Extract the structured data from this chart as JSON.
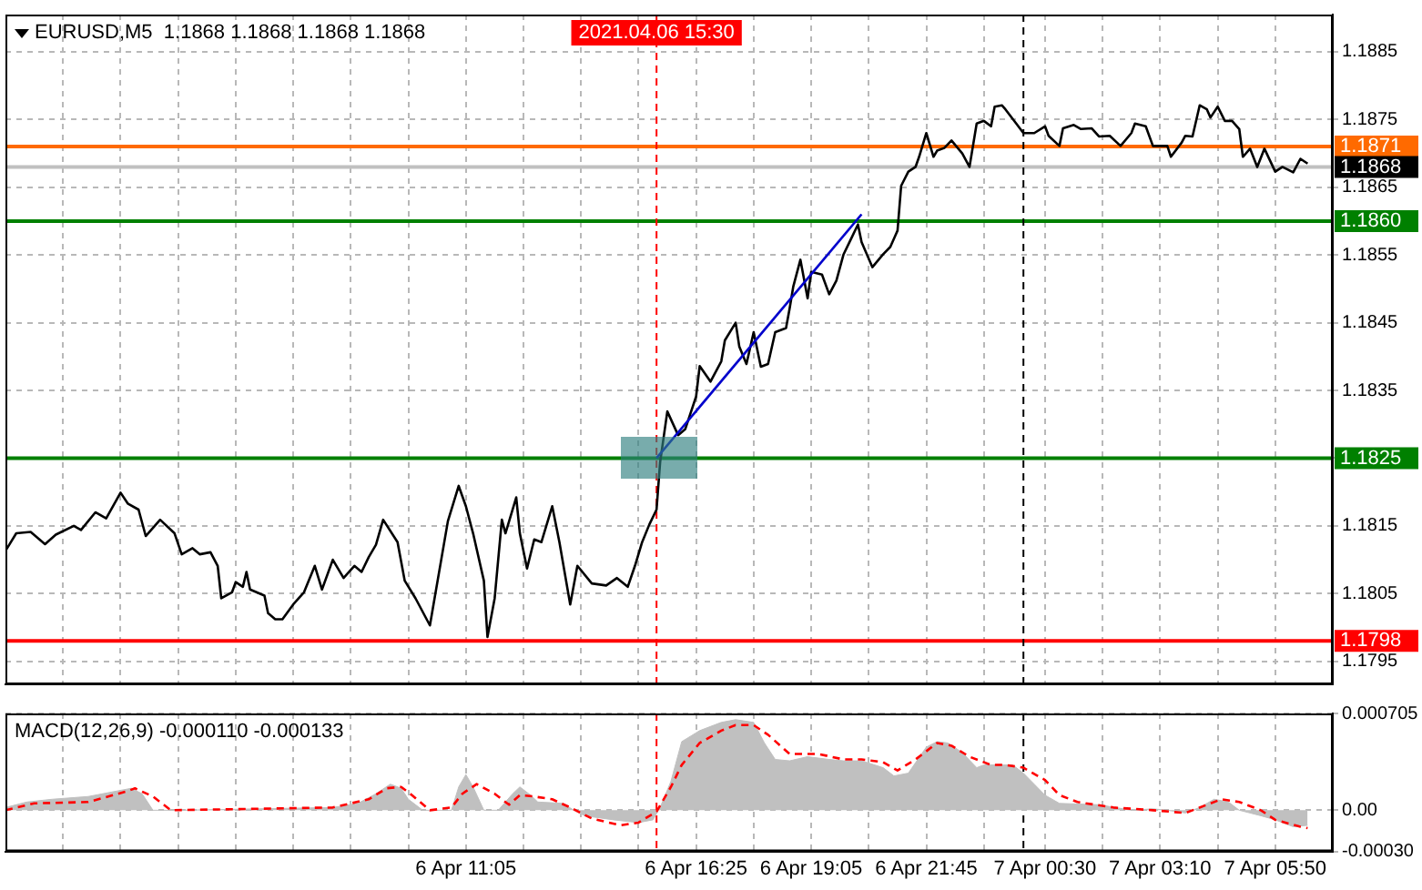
{
  "chart_data": [
    {
      "type": "line",
      "title": "EURUSD,M5  1.1868 1.1868 1.1868 1.1868",
      "xlim": [
        "2021-04-06T00:25",
        "2021-04-07T07:10"
      ],
      "ylim": [
        1.17916,
        1.18905
      ],
      "tick_labels": "y",
      "grid": true,
      "xticks": [
        {
          "value": "2021-04-06T01:45",
          "label": null
        },
        {
          "value": "2021-04-06T03:05",
          "label": null
        },
        {
          "value": "2021-04-06T04:25",
          "label": null
        },
        {
          "value": "2021-04-06T05:45",
          "label": null
        },
        {
          "value": "2021-04-06T07:05",
          "label": null
        },
        {
          "value": "2021-04-06T08:25",
          "label": null
        },
        {
          "value": "2021-04-06T09:45",
          "label": null
        },
        {
          "value": "2021-04-06T11:05",
          "label": null
        },
        {
          "value": "2021-04-06T12:25",
          "label": null
        },
        {
          "value": "2021-04-06T13:45",
          "label": null
        },
        {
          "value": "2021-04-06T15:05",
          "label": null
        },
        {
          "value": "2021-04-06T16:25",
          "label": null
        },
        {
          "value": "2021-04-06T17:45",
          "label": null
        },
        {
          "value": "2021-04-06T19:05",
          "label": null
        },
        {
          "value": "2021-04-06T20:25",
          "label": null
        },
        {
          "value": "2021-04-06T21:45",
          "label": null
        },
        {
          "value": "2021-04-06T23:05",
          "label": null
        },
        {
          "value": "2021-04-07T00:30",
          "label": null
        },
        {
          "value": "2021-04-07T01:50",
          "label": null
        },
        {
          "value": "2021-04-07T03:10",
          "label": null
        },
        {
          "value": "2021-04-07T04:30",
          "label": null
        },
        {
          "value": "2021-04-07T05:50",
          "label": null
        }
      ],
      "yticks": [
        1.1795,
        1.1805,
        1.1815,
        {
          "value": 1.1825,
          "label": null
        },
        1.1835,
        1.1845,
        1.1855,
        1.1865,
        1.1875,
        1.1885
      ],
      "series": [
        {
          "color": "#000000",
          "x": [
            "2021-04-06T00:25",
            "2021-04-06T00:40",
            "2021-04-06T01:00",
            "2021-04-06T01:20",
            "2021-04-06T01:35",
            "2021-04-06T02:00",
            "2021-04-06T02:10",
            "2021-04-06T02:30",
            "2021-04-06T02:45",
            "2021-04-06T03:05",
            "2021-04-06T03:15",
            "2021-04-06T03:30",
            "2021-04-06T03:40",
            "2021-04-06T04:00",
            "2021-04-06T04:20",
            "2021-04-06T04:30",
            "2021-04-06T04:45",
            "2021-04-06T04:55",
            "2021-04-06T05:10",
            "2021-04-06T05:20",
            "2021-04-06T05:25",
            "2021-04-06T05:40",
            "2021-04-06T05:45",
            "2021-04-06T05:55",
            "2021-04-06T06:00",
            "2021-04-06T06:05",
            "2021-04-06T06:25",
            "2021-04-06T06:30",
            "2021-04-06T06:40",
            "2021-04-06T06:50",
            "2021-04-06T07:05",
            "2021-04-06T07:20",
            "2021-04-06T07:35",
            "2021-04-06T07:45",
            "2021-04-06T08:00",
            "2021-04-06T08:15",
            "2021-04-06T08:30",
            "2021-04-06T08:40",
            "2021-04-06T08:50",
            "2021-04-06T09:00",
            "2021-04-06T09:10",
            "2021-04-06T09:30",
            "2021-04-06T09:40",
            "2021-04-06T09:55",
            "2021-04-06T10:15",
            "2021-04-06T10:20",
            "2021-04-06T10:40",
            "2021-04-06T10:55",
            "2021-04-06T11:05",
            "2021-04-06T11:15",
            "2021-04-06T11:30",
            "2021-04-06T11:35",
            "2021-04-06T11:45",
            "2021-04-06T11:55",
            "2021-04-06T12:00",
            "2021-04-06T12:15",
            "2021-04-06T12:20",
            "2021-04-06T12:30",
            "2021-04-06T12:40",
            "2021-04-06T12:50",
            "2021-04-06T13:05",
            "2021-04-06T13:15",
            "2021-04-06T13:30",
            "2021-04-06T13:40",
            "2021-04-06T14:00",
            "2021-04-06T14:20",
            "2021-04-06T14:35",
            "2021-04-06T14:50",
            "2021-04-06T15:00",
            "2021-04-06T15:10",
            "2021-04-06T15:20",
            "2021-04-06T15:30",
            "2021-04-06T15:35",
            "2021-04-06T15:45",
            "2021-04-06T16:00",
            "2021-04-06T16:10",
            "2021-04-06T16:25",
            "2021-04-06T16:30",
            "2021-04-06T16:45",
            "2021-04-06T17:00",
            "2021-04-06T17:05",
            "2021-04-06T17:20",
            "2021-04-06T17:25",
            "2021-04-06T17:35",
            "2021-04-06T17:45",
            "2021-04-06T17:55",
            "2021-04-06T18:05",
            "2021-04-06T18:15",
            "2021-04-06T18:30",
            "2021-04-06T18:35",
            "2021-04-06T18:40",
            "2021-04-06T18:50",
            "2021-04-06T19:00",
            "2021-04-06T19:05",
            "2021-04-06T19:20",
            "2021-04-06T19:30",
            "2021-04-06T19:40",
            "2021-04-06T19:50",
            "2021-04-06T20:00",
            "2021-04-06T20:10",
            "2021-04-06T20:15",
            "2021-04-06T20:30",
            "2021-04-06T20:45",
            "2021-04-06T20:55",
            "2021-04-06T21:05",
            "2021-04-06T21:10",
            "2021-04-06T21:20",
            "2021-04-06T21:30",
            "2021-04-06T21:35",
            "2021-04-06T21:45",
            "2021-04-06T21:55",
            "2021-04-06T22:00",
            "2021-04-06T22:10",
            "2021-04-06T22:20",
            "2021-04-06T22:35",
            "2021-04-06T22:45",
            "2021-04-06T22:55",
            "2021-04-06T23:05",
            "2021-04-06T23:15",
            "2021-04-06T23:20",
            "2021-04-06T23:30",
            "2021-04-06T23:35",
            "2021-04-06T23:50",
            "2021-04-07T00:00",
            "2021-04-07T00:15",
            "2021-04-07T00:30",
            "2021-04-07T00:35",
            "2021-04-07T00:50",
            "2021-04-07T00:55",
            "2021-04-07T01:10",
            "2021-04-07T01:20",
            "2021-04-07T01:35",
            "2021-04-07T01:45",
            "2021-04-07T02:00",
            "2021-04-07T02:15",
            "2021-04-07T02:30",
            "2021-04-07T02:35",
            "2021-04-07T02:50",
            "2021-04-07T03:00",
            "2021-04-07T03:20",
            "2021-04-07T03:25",
            "2021-04-07T03:40",
            "2021-04-07T03:45",
            "2021-04-07T03:55",
            "2021-04-07T04:05",
            "2021-04-07T04:15",
            "2021-04-07T04:20",
            "2021-04-07T04:30",
            "2021-04-07T04:40",
            "2021-04-07T04:50",
            "2021-04-07T05:00",
            "2021-04-07T05:05",
            "2021-04-07T05:15",
            "2021-04-07T05:25",
            "2021-04-07T05:35",
            "2021-04-07T05:50",
            "2021-04-07T06:00",
            "2021-04-07T06:15",
            "2021-04-07T06:25",
            "2021-04-07T06:35"
          ],
          "values": [
            1.18113,
            1.18139,
            1.18141,
            1.18123,
            1.18137,
            1.1815,
            1.18144,
            1.1817,
            1.18161,
            1.18199,
            1.18183,
            1.18174,
            1.18135,
            1.18159,
            1.18139,
            1.18108,
            1.18117,
            1.18108,
            1.18111,
            1.18091,
            1.18043,
            1.18052,
            1.18067,
            1.1806,
            1.18082,
            1.18056,
            1.18047,
            1.18021,
            1.18012,
            1.18012,
            1.18034,
            1.18052,
            1.18091,
            1.18056,
            1.181,
            1.18073,
            1.18091,
            1.18082,
            1.18104,
            1.18122,
            1.18159,
            1.18126,
            1.18069,
            1.18043,
            1.18003,
            1.18034,
            1.18157,
            1.18209,
            1.18179,
            1.18139,
            1.18069,
            1.17986,
            1.18043,
            1.18159,
            1.18139,
            1.18192,
            1.18139,
            1.18087,
            1.1813,
            1.18126,
            1.18179,
            1.18126,
            1.18034,
            1.18091,
            1.18065,
            1.18062,
            1.18073,
            1.1806,
            1.18091,
            1.18126,
            1.18152,
            1.18174,
            1.18244,
            1.18319,
            1.18284,
            1.18293,
            1.18341,
            1.18386,
            1.18363,
            1.18393,
            1.18424,
            1.1845,
            1.18415,
            1.18389,
            1.18436,
            1.18385,
            1.18389,
            1.18436,
            1.18442,
            1.18471,
            1.18503,
            1.18543,
            1.18486,
            1.18525,
            1.18521,
            1.18492,
            1.18512,
            1.18551,
            1.18573,
            1.18595,
            1.18569,
            1.18532,
            1.18551,
            1.18562,
            1.18586,
            1.18652,
            1.18673,
            1.1868,
            1.18695,
            1.1873,
            1.18695,
            1.18704,
            1.18708,
            1.18719,
            1.187,
            1.1868,
            1.18744,
            1.18748,
            1.1874,
            1.18769,
            1.18771,
            1.18765,
            1.18744,
            1.1873,
            1.1873,
            1.1874,
            1.18726,
            1.18711,
            1.18737,
            1.18742,
            1.18736,
            1.18737,
            1.18725,
            1.18726,
            1.18711,
            1.1873,
            1.18744,
            1.1874,
            1.18711,
            1.18711,
            1.18695,
            1.18716,
            1.18726,
            1.18725,
            1.18771,
            1.18765,
            1.18753,
            1.18769,
            1.18748,
            1.18748,
            1.18736,
            1.18695,
            1.18707,
            1.1868,
            1.18707,
            1.18673,
            1.1868,
            1.18672,
            1.18692,
            1.18685
          ]
        },
        {
          "color": "#0000cc",
          "x": [
            "2021-04-06T15:30",
            "2021-04-06T20:15"
          ],
          "values": [
            1.1825,
            1.1861
          ]
        }
      ],
      "ref_lines": [
        {
          "axis": "y",
          "value": 1.1871,
          "label": "1.1871",
          "color": "#ff6a00"
        },
        {
          "axis": "y",
          "value": 1.1868,
          "label": "1.1868",
          "color": "#c0c0c0"
        },
        {
          "axis": "y",
          "value": 1.186,
          "label": "1.1860",
          "color": "#008000"
        },
        {
          "axis": "y",
          "value": 1.1825,
          "label": "1.1825",
          "color": "#008000"
        },
        {
          "axis": "y",
          "value": 1.1798,
          "label": "1.1798",
          "color": "#ff0000"
        },
        {
          "axis": "x",
          "value": "2021-04-06T15:30",
          "label": "2021.04.06 15:30",
          "color": "#ff0000",
          "line_style": "dashed"
        },
        {
          "axis": "x",
          "value": "2021-04-07T00:00",
          "color": "#000000",
          "line_style": "dashed"
        }
      ]
    },
    {
      "type": "area",
      "title": "MACD(12,26,9) -0.000110 -0.000133",
      "xlim": [
        "2021-04-06T00:25",
        "2021-04-07T07:10"
      ],
      "ylim": [
        -0.0003,
        0.000705
      ],
      "grid": true,
      "xticks": [
        {
          "value": "2021-04-06T01:45",
          "label": null
        },
        {
          "value": "2021-04-06T03:05",
          "label": null
        },
        {
          "value": "2021-04-06T04:25",
          "label": null
        },
        {
          "value": "2021-04-06T05:45",
          "label": null
        },
        {
          "value": "2021-04-06T07:05",
          "label": null
        },
        {
          "value": "2021-04-06T08:25",
          "label": null
        },
        {
          "value": "2021-04-06T09:45",
          "label": null
        },
        {
          "value": "2021-04-06T11:05",
          "label": "6 Apr 11:05"
        },
        {
          "value": "2021-04-06T12:25",
          "label": null
        },
        {
          "value": "2021-04-06T13:45",
          "label": null
        },
        {
          "value": "2021-04-06T15:05",
          "label": null
        },
        {
          "value": "2021-04-06T16:25",
          "label": "6 Apr 16:25"
        },
        {
          "value": "2021-04-06T17:45",
          "label": null
        },
        {
          "value": "2021-04-06T19:05",
          "label": "6 Apr 19:05"
        },
        {
          "value": "2021-04-06T20:25",
          "label": null
        },
        {
          "value": "2021-04-06T21:45",
          "label": "6 Apr 21:45"
        },
        {
          "value": "2021-04-06T23:05",
          "label": null
        },
        {
          "value": "2021-04-07T00:30",
          "label": "7 Apr 00:30"
        },
        {
          "value": "2021-04-07T01:50",
          "label": null
        },
        {
          "value": "2021-04-07T03:10",
          "label": "7 Apr 03:10"
        },
        {
          "value": "2021-04-07T04:30",
          "label": null
        },
        {
          "value": "2021-04-07T05:50",
          "label": "7 Apr 05:50"
        }
      ],
      "yticks": [
        {
          "value": -0.0003,
          "label": "-0.00030"
        },
        {
          "value": 0,
          "label": "0.00"
        },
        0.000705
      ],
      "series": [
        {
          "color": "#c0c0c0",
          "x": [
            "2021-04-06T00:25",
            "2021-04-06T00:55",
            "2021-04-06T01:30",
            "2021-04-06T02:20",
            "2021-04-06T03:00",
            "2021-04-06T03:20",
            "2021-04-06T03:35",
            "2021-04-06T03:50",
            "2021-04-06T04:30",
            "2021-04-06T08:00",
            "2021-04-06T08:35",
            "2021-04-06T09:00",
            "2021-04-06T09:20",
            "2021-04-06T09:35",
            "2021-04-06T09:45",
            "2021-04-06T10:05",
            "2021-04-06T10:45",
            "2021-04-06T10:55",
            "2021-04-06T11:05",
            "2021-04-06T11:15",
            "2021-04-06T11:30",
            "2021-04-06T11:50",
            "2021-04-06T12:10",
            "2021-04-06T12:20",
            "2021-04-06T12:35",
            "2021-04-06T12:45",
            "2021-04-06T13:20",
            "2021-04-06T13:35",
            "2021-04-06T13:50",
            "2021-04-06T14:30",
            "2021-04-06T15:05",
            "2021-04-06T15:25",
            "2021-04-06T15:35",
            "2021-04-06T15:50",
            "2021-04-06T16:05",
            "2021-04-06T16:30",
            "2021-04-06T17:00",
            "2021-04-06T17:20",
            "2021-04-06T17:45",
            "2021-04-06T18:00",
            "2021-04-06T18:15",
            "2021-04-06T18:35",
            "2021-04-06T19:00",
            "2021-04-06T19:30",
            "2021-04-06T19:50",
            "2021-04-06T20:15",
            "2021-04-06T20:45",
            "2021-04-06T21:00",
            "2021-04-06T21:20",
            "2021-04-06T21:45",
            "2021-04-06T22:00",
            "2021-04-06T22:15",
            "2021-04-06T22:35",
            "2021-04-06T22:55",
            "2021-04-06T23:05",
            "2021-04-06T23:25",
            "2021-04-06T23:45",
            "2021-04-07T00:00",
            "2021-04-07T00:30",
            "2021-04-07T00:50",
            "2021-04-07T01:45",
            "2021-04-07T02:30",
            "2021-04-07T03:00",
            "2021-04-07T03:20",
            "2021-04-07T03:45",
            "2021-04-07T04:05",
            "2021-04-07T04:25",
            "2021-04-07T04:45",
            "2021-04-07T05:00",
            "2021-04-07T05:30",
            "2021-04-07T05:50",
            "2021-04-07T06:15",
            "2021-04-07T06:35"
          ],
          "values": [
            2e-05,
            6e-05,
            8e-05,
            0.0001,
            0.00014,
            0.00016,
            0.00012,
            0,
            0,
            2e-05,
            5e-05,
            0.00012,
            0.00019,
            0.00016,
            8e-05,
            0,
            0,
            0.00017,
            0.00026,
            0.00017,
            0,
            0,
            0.00012,
            0.00017,
            0.00011,
            6e-05,
            5e-05,
            0,
            -4e-05,
            -7e-05,
            -9e-05,
            -7e-05,
            2e-05,
            0.00021,
            0.0005,
            0.00058,
            0.00064,
            0.00066,
            0.00064,
            0.00049,
            0.00037,
            0.00036,
            0.00039,
            0.00037,
            0.00036,
            0.00036,
            0.00031,
            0.00025,
            0.00027,
            0.00046,
            0.0005,
            0.00049,
            0.00042,
            0.00031,
            0.00033,
            0.00033,
            0.00033,
            0.00027,
            0.00011,
            5e-05,
            4e-05,
            0,
            1e-05,
            0,
            -2e-05,
            2e-05,
            8e-05,
            6e-05,
            0,
            -4e-05,
            -7e-05,
            -0.00012,
            -0.00011
          ]
        },
        {
          "type": "line",
          "color": "#ff0000",
          "line_style": "dashed",
          "x": [
            "2021-04-06T00:25",
            "2021-04-06T01:05",
            "2021-04-06T02:20",
            "2021-04-06T03:15",
            "2021-04-06T03:25",
            "2021-04-06T03:50",
            "2021-04-06T04:15",
            "2021-04-06T08:00",
            "2021-04-06T08:50",
            "2021-04-06T09:15",
            "2021-04-06T09:35",
            "2021-04-06T09:50",
            "2021-04-06T10:15",
            "2021-04-06T10:45",
            "2021-04-06T11:00",
            "2021-04-06T11:20",
            "2021-04-06T11:45",
            "2021-04-06T12:05",
            "2021-04-06T12:20",
            "2021-04-06T12:40",
            "2021-04-06T13:05",
            "2021-04-06T13:30",
            "2021-04-06T14:00",
            "2021-04-06T14:40",
            "2021-04-06T15:05",
            "2021-04-06T15:30",
            "2021-04-06T15:50",
            "2021-04-06T16:05",
            "2021-04-06T16:30",
            "2021-04-06T17:00",
            "2021-04-06T17:20",
            "2021-04-06T17:45",
            "2021-04-06T18:05",
            "2021-04-06T18:35",
            "2021-04-06T19:15",
            "2021-04-06T19:50",
            "2021-04-06T20:15",
            "2021-04-06T20:45",
            "2021-04-06T21:05",
            "2021-04-06T21:30",
            "2021-04-06T22:00",
            "2021-04-06T22:20",
            "2021-04-06T22:45",
            "2021-04-06T23:15",
            "2021-04-06T23:35",
            "2021-04-07T00:00",
            "2021-04-07T00:30",
            "2021-04-07T00:50",
            "2021-04-07T01:15",
            "2021-04-07T02:05",
            "2021-04-07T03:00",
            "2021-04-07T03:45",
            "2021-04-07T04:15",
            "2021-04-07T04:35",
            "2021-04-07T05:00",
            "2021-04-07T05:30",
            "2021-04-07T05:50",
            "2021-04-07T06:25",
            "2021-04-07T06:35"
          ],
          "values": [
            0,
            5e-05,
            6e-05,
            0.00014,
            0.00016,
            0.0001,
            0,
            2e-05,
            8e-05,
            0.00016,
            0.00017,
            0.00011,
            0,
            2e-05,
            0.00012,
            0.00019,
            0.00012,
            4e-05,
            0.00011,
            0.0001,
            8e-05,
            2e-05,
            -6e-05,
            -0.00011,
            -9e-05,
            -1e-05,
            0.00017,
            0.00033,
            0.00049,
            0.00058,
            0.00062,
            0.00062,
            0.00055,
            0.00041,
            0.00041,
            0.00037,
            0.00037,
            0.00035,
            0.00029,
            0.00037,
            0.00049,
            0.00047,
            0.00039,
            0.00033,
            0.00033,
            0.00031,
            0.00022,
            0.00011,
            6e-05,
            2e-05,
            0,
            -2e-05,
            4e-05,
            8e-05,
            6e-05,
            0,
            -7e-05,
            -0.00012,
            -0.00013
          ]
        }
      ],
      "ref_lines": [
        {
          "axis": "x",
          "value": "2021-04-06T15:30",
          "color": "#ff0000",
          "line_style": "dashed"
        },
        {
          "axis": "x",
          "value": "2021-04-07T00:00",
          "color": "#000000",
          "line_style": "dashed"
        }
      ]
    }
  ]
}
